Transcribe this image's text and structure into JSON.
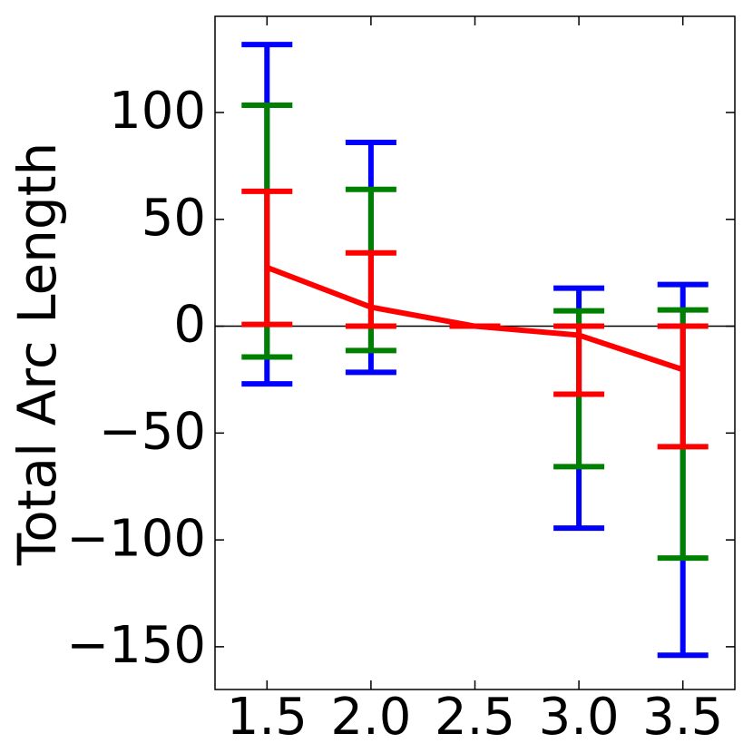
{
  "chart_data": {
    "type": "errorbar",
    "ylabel": "Total Arc Length",
    "x": [
      1.5,
      2.0,
      2.5,
      3.0,
      3.5
    ],
    "xlim": [
      1.25,
      3.75
    ],
    "xticks": [
      1.5,
      {
        "value": 2,
        "label": "2.0"
      },
      2.5,
      {
        "value": 3,
        "label": "3.0"
      },
      3.5
    ],
    "ylim": [
      -170,
      145
    ],
    "yticks": [
      {
        "value": -150,
        "label": "−150"
      },
      {
        "value": -100,
        "label": "−100"
      },
      {
        "value": -50,
        "label": "−50"
      },
      0,
      50,
      100
    ],
    "axhline": 0,
    "series": [
      {
        "color": "#0000ff",
        "lower": [
          -27,
          -21.6,
          0,
          -94.5,
          -154
        ],
        "upper": [
          131.8,
          86,
          0,
          17.8,
          19.5
        ]
      },
      {
        "color": "#008000",
        "lower": [
          -14.4,
          -11.4,
          0,
          -65.7,
          -108.5
        ],
        "upper": [
          103.4,
          64,
          0,
          7.2,
          7.6
        ]
      },
      {
        "color": "#ff0000",
        "lower": [
          0.8,
          0,
          0,
          -31.8,
          -56.4
        ],
        "upper": [
          63.1,
          34.3,
          0,
          0,
          0
        ]
      }
    ],
    "line": {
      "color": "#ff0000",
      "values": [
        27.5,
        8.9,
        0,
        -4.2,
        -20.3
      ]
    }
  }
}
